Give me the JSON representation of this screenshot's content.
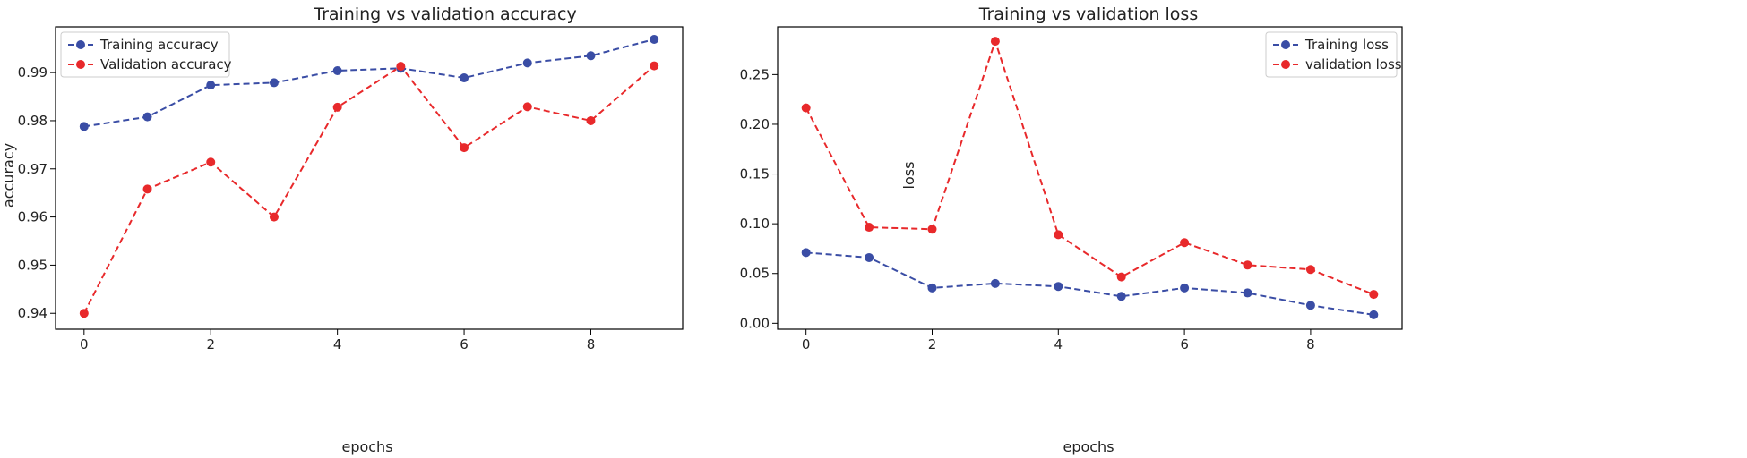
{
  "chart_data": [
    {
      "type": "line",
      "title": "Training vs validation accuracy",
      "xlabel": "epochs",
      "ylabel": "accuracy",
      "x": [
        0,
        1,
        2,
        3,
        4,
        5,
        6,
        7,
        8,
        9
      ],
      "xlim": [
        -0.45,
        9.45
      ],
      "ylim": [
        0.9367,
        0.9995
      ],
      "xticks": [
        0,
        2,
        4,
        6,
        8
      ],
      "yticks": [
        0.94,
        0.95,
        0.96,
        0.97,
        0.98,
        0.99
      ],
      "ytick_labels": [
        "0.94",
        "0.95",
        "0.96",
        "0.97",
        "0.98",
        "0.99"
      ],
      "grid": false,
      "legend_position": "top-left",
      "series": [
        {
          "name": "Training accuracy",
          "color": "#3a4da5",
          "style": "dashed",
          "marker": "circle",
          "values": [
            0.9788,
            0.9808,
            0.9874,
            0.9879,
            0.9904,
            0.9909,
            0.9889,
            0.992,
            0.9935,
            0.9969
          ]
        },
        {
          "name": "Validation accuracy",
          "color": "#e8292b",
          "style": "dashed",
          "marker": "circle",
          "values": [
            0.94,
            0.9658,
            0.9714,
            0.96,
            0.9828,
            0.9913,
            0.9744,
            0.9829,
            0.98,
            0.9914
          ]
        }
      ]
    },
    {
      "type": "line",
      "title": "Training vs validation loss",
      "xlabel": "epochs",
      "ylabel": "loss",
      "x": [
        0,
        1,
        2,
        3,
        4,
        5,
        6,
        7,
        8,
        9
      ],
      "xlim": [
        -0.45,
        9.45
      ],
      "ylim": [
        -0.006,
        0.298
      ],
      "xticks": [
        0,
        2,
        4,
        6,
        8
      ],
      "yticks": [
        0.0,
        0.05,
        0.1,
        0.15,
        0.2,
        0.25
      ],
      "ytick_labels": [
        "0.00",
        "0.05",
        "0.10",
        "0.15",
        "0.20",
        "0.25"
      ],
      "grid": false,
      "legend_position": "top-right",
      "series": [
        {
          "name": "Training loss",
          "color": "#3a4da5",
          "style": "dashed",
          "marker": "circle",
          "values": [
            0.071,
            0.066,
            0.0355,
            0.04,
            0.037,
            0.027,
            0.0355,
            0.0305,
            0.018,
            0.0085
          ]
        },
        {
          "name": "validation loss",
          "color": "#e8292b",
          "style": "dashed",
          "marker": "circle",
          "values": [
            0.2165,
            0.0965,
            0.0945,
            0.2835,
            0.089,
            0.0465,
            0.081,
            0.0585,
            0.054,
            0.029
          ]
        }
      ]
    }
  ]
}
